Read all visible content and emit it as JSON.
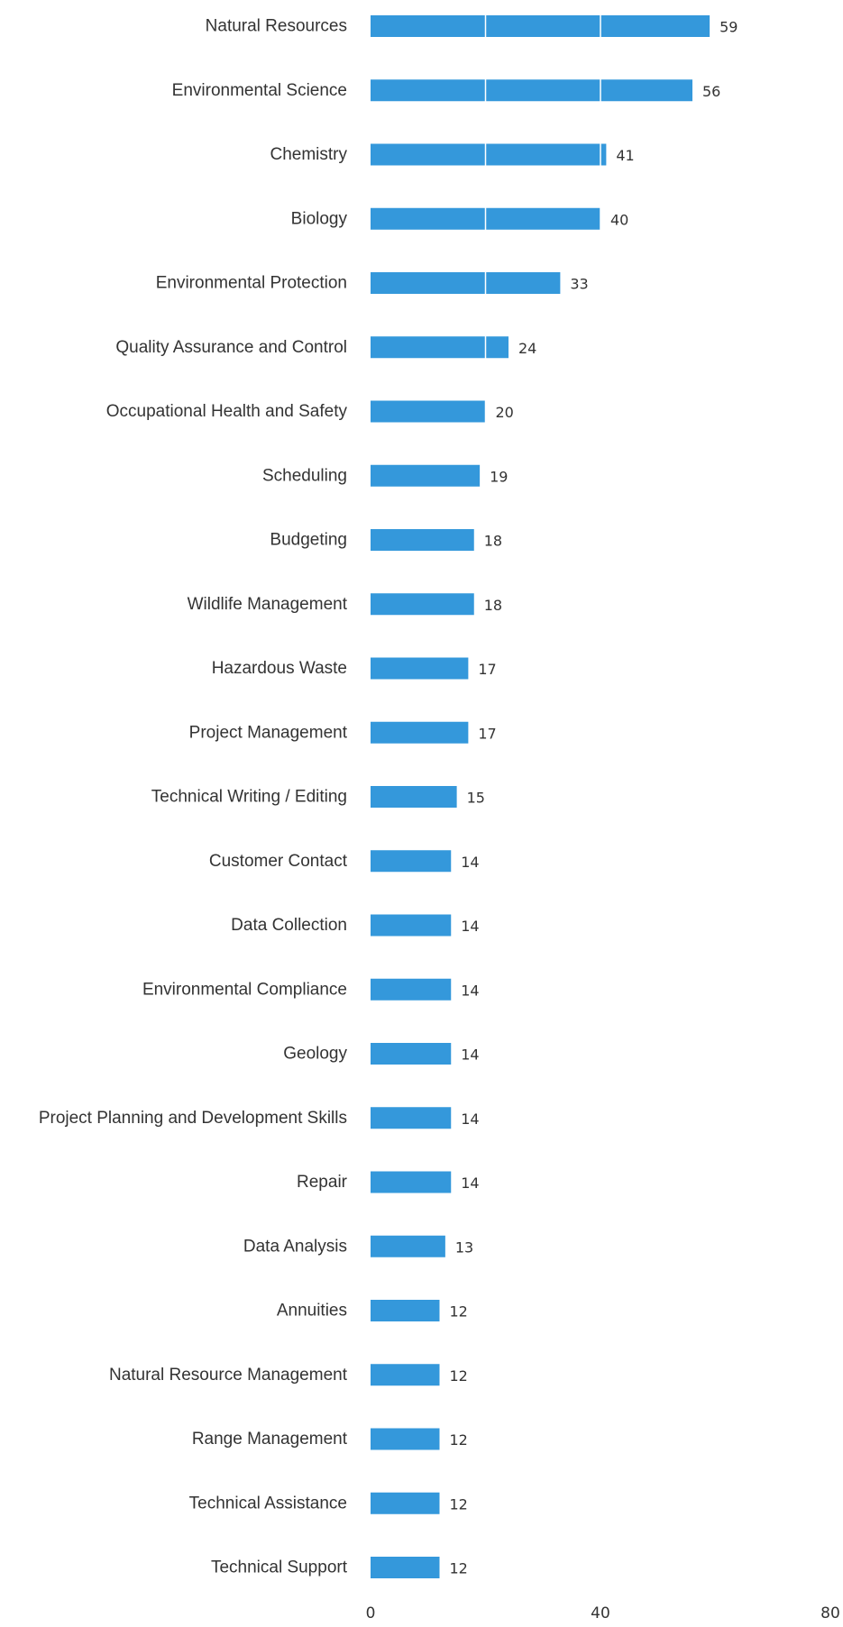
{
  "chart_data": {
    "type": "bar",
    "orientation": "horizontal",
    "categories": [
      "Natural Resources",
      "Environmental Science",
      "Chemistry",
      "Biology",
      "Environmental Protection",
      "Quality Assurance and Control",
      "Occupational Health and Safety",
      "Scheduling",
      "Budgeting",
      "Wildlife Management",
      "Hazardous Waste",
      "Project Management",
      "Technical Writing / Editing",
      "Customer Contact",
      "Data Collection",
      "Environmental Compliance",
      "Geology",
      "Project Planning and Development Skills",
      "Repair",
      "Data Analysis",
      "Annuities",
      "Natural Resource Management",
      "Range Management",
      "Technical Assistance",
      "Technical Support"
    ],
    "values": [
      59,
      56,
      41,
      40,
      33,
      24,
      20,
      19,
      18,
      18,
      17,
      17,
      15,
      14,
      14,
      14,
      14,
      14,
      14,
      13,
      12,
      12,
      12,
      12,
      12
    ],
    "xlim": [
      0,
      80
    ],
    "x_ticks": [
      0,
      40,
      80
    ],
    "grid": "vertical lines at 20 and 40",
    "bar_color": "#3498db",
    "gridline_color": "#ffffff",
    "title": "",
    "xlabel": "",
    "ylabel": ""
  }
}
